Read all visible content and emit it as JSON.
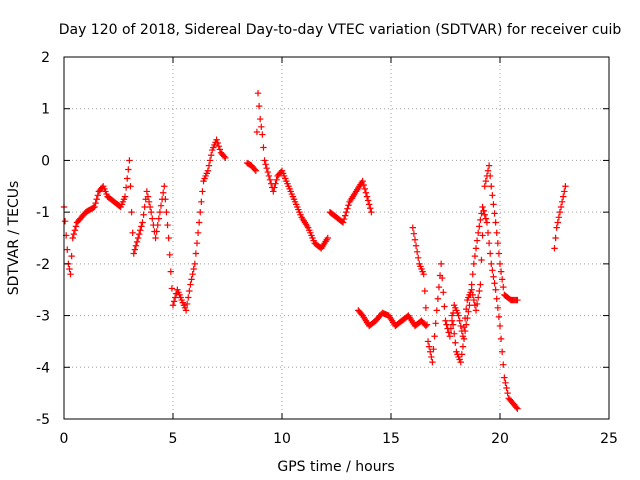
{
  "chart_data": {
    "type": "scatter",
    "title": "Day 120 of 2018, Sidereal Day-to-day VTEC variation (SDTVAR) for receiver cuib",
    "xlabel": "GPS time / hours",
    "ylabel": "SDTVAR / TECUs",
    "xlim": [
      0,
      25
    ],
    "ylim": [
      -5,
      2
    ],
    "xticks": [
      0,
      5,
      10,
      15,
      20,
      25
    ],
    "xtick_labels": [
      "0",
      "5",
      "10",
      "15",
      "20",
      "25"
    ],
    "yticks": [
      -5,
      -4,
      -3,
      -2,
      -1,
      0,
      1,
      2
    ],
    "ytick_labels": [
      "-5",
      "-4",
      "-3",
      "-2",
      "-1",
      "0",
      "1",
      "2"
    ],
    "grid": true,
    "marker": "+",
    "series": [
      {
        "name": "SDTVAR",
        "color": "#ff0000",
        "segments": [
          [
            [
              0.0,
              -0.9
            ],
            [
              0.2,
              -2.0
            ],
            [
              0.3,
              -2.2
            ],
            [
              0.4,
              -1.5
            ],
            [
              0.6,
              -1.2
            ],
            [
              0.8,
              -1.1
            ],
            [
              1.0,
              -1.0
            ],
            [
              1.2,
              -0.95
            ],
            [
              1.4,
              -0.9
            ],
            [
              1.6,
              -0.6
            ],
            [
              1.8,
              -0.5
            ],
            [
              2.0,
              -0.7
            ],
            [
              2.3,
              -0.8
            ],
            [
              2.6,
              -0.9
            ],
            [
              2.8,
              -0.7
            ],
            [
              3.0,
              0.0
            ],
            [
              3.1,
              -1.0
            ],
            [
              3.2,
              -1.8
            ],
            [
              3.4,
              -1.5
            ],
            [
              3.6,
              -1.2
            ],
            [
              3.8,
              -0.6
            ],
            [
              4.0,
              -1.0
            ],
            [
              4.2,
              -1.5
            ],
            [
              4.4,
              -1.0
            ],
            [
              4.6,
              -0.5
            ],
            [
              4.8,
              -1.5
            ],
            [
              5.0,
              -2.8
            ],
            [
              5.2,
              -2.5
            ],
            [
              5.4,
              -2.7
            ],
            [
              5.6,
              -2.9
            ],
            [
              5.8,
              -2.4
            ],
            [
              6.0,
              -2.0
            ],
            [
              6.2,
              -1.2
            ],
            [
              6.4,
              -0.4
            ],
            [
              6.6,
              -0.2
            ],
            [
              6.8,
              0.2
            ],
            [
              7.0,
              0.4
            ],
            [
              7.2,
              0.15
            ],
            [
              7.4,
              0.05
            ]
          ],
          [
            [
              8.4,
              -0.05
            ],
            [
              8.6,
              -0.1
            ],
            [
              8.8,
              -0.2
            ],
            [
              8.9,
              1.3
            ],
            [
              9.0,
              0.8
            ],
            [
              9.1,
              0.5
            ],
            [
              9.2,
              0.0
            ],
            [
              9.4,
              -0.3
            ],
            [
              9.6,
              -0.6
            ],
            [
              9.8,
              -0.3
            ],
            [
              10.0,
              -0.2
            ],
            [
              10.3,
              -0.5
            ],
            [
              10.6,
              -0.8
            ],
            [
              10.9,
              -1.1
            ],
            [
              11.2,
              -1.3
            ],
            [
              11.5,
              -1.6
            ],
            [
              11.8,
              -1.7
            ],
            [
              12.1,
              -1.5
            ]
          ],
          [
            [
              12.2,
              -1.0
            ],
            [
              12.5,
              -1.1
            ],
            [
              12.8,
              -1.2
            ],
            [
              13.1,
              -0.8
            ],
            [
              13.4,
              -0.6
            ],
            [
              13.7,
              -0.4
            ],
            [
              13.9,
              -0.7
            ],
            [
              14.1,
              -1.0
            ]
          ],
          [
            [
              13.5,
              -2.9
            ],
            [
              13.7,
              -3.0
            ],
            [
              14.0,
              -3.2
            ],
            [
              14.3,
              -3.1
            ],
            [
              14.6,
              -2.95
            ],
            [
              14.9,
              -3.0
            ],
            [
              15.2,
              -3.2
            ],
            [
              15.5,
              -3.1
            ],
            [
              15.8,
              -3.0
            ],
            [
              16.1,
              -3.2
            ],
            [
              16.4,
              -3.1
            ],
            [
              16.6,
              -3.2
            ]
          ],
          [
            [
              16.0,
              -1.3
            ],
            [
              16.3,
              -2.0
            ],
            [
              16.5,
              -2.2
            ],
            [
              16.7,
              -3.5
            ],
            [
              16.9,
              -3.9
            ],
            [
              17.1,
              -2.9
            ],
            [
              17.3,
              -2.0
            ],
            [
              17.5,
              -3.1
            ],
            [
              17.7,
              -3.4
            ],
            [
              17.9,
              -2.8
            ],
            [
              18.1,
              -3.0
            ],
            [
              18.3,
              -3.4
            ],
            [
              18.5,
              -2.7
            ],
            [
              18.7,
              -2.5
            ],
            [
              18.9,
              -2.9
            ],
            [
              19.1,
              -2.4
            ],
            [
              19.3,
              -0.5
            ],
            [
              19.5,
              -0.1
            ],
            [
              19.6,
              -0.5
            ],
            [
              19.8,
              -1.2
            ],
            [
              20.0,
              -2.0
            ],
            [
              20.2,
              -2.6
            ],
            [
              20.5,
              -2.7
            ],
            [
              20.8,
              -2.7
            ]
          ],
          [
            [
              17.8,
              -3.0
            ],
            [
              18.0,
              -3.7
            ],
            [
              18.2,
              -3.9
            ],
            [
              18.4,
              -3.3
            ],
            [
              18.6,
              -2.8
            ],
            [
              18.8,
              -2.0
            ],
            [
              19.0,
              -1.4
            ],
            [
              19.2,
              -0.9
            ],
            [
              19.4,
              -1.2
            ],
            [
              19.6,
              -2.0
            ],
            [
              19.8,
              -2.5
            ],
            [
              20.0,
              -3.2
            ],
            [
              20.2,
              -4.2
            ],
            [
              20.4,
              -4.6
            ],
            [
              20.6,
              -4.7
            ],
            [
              20.8,
              -4.8
            ]
          ],
          [
            [
              22.5,
              -1.7
            ],
            [
              22.6,
              -1.3
            ],
            [
              22.8,
              -0.9
            ],
            [
              23.0,
              -0.5
            ]
          ]
        ]
      }
    ]
  }
}
